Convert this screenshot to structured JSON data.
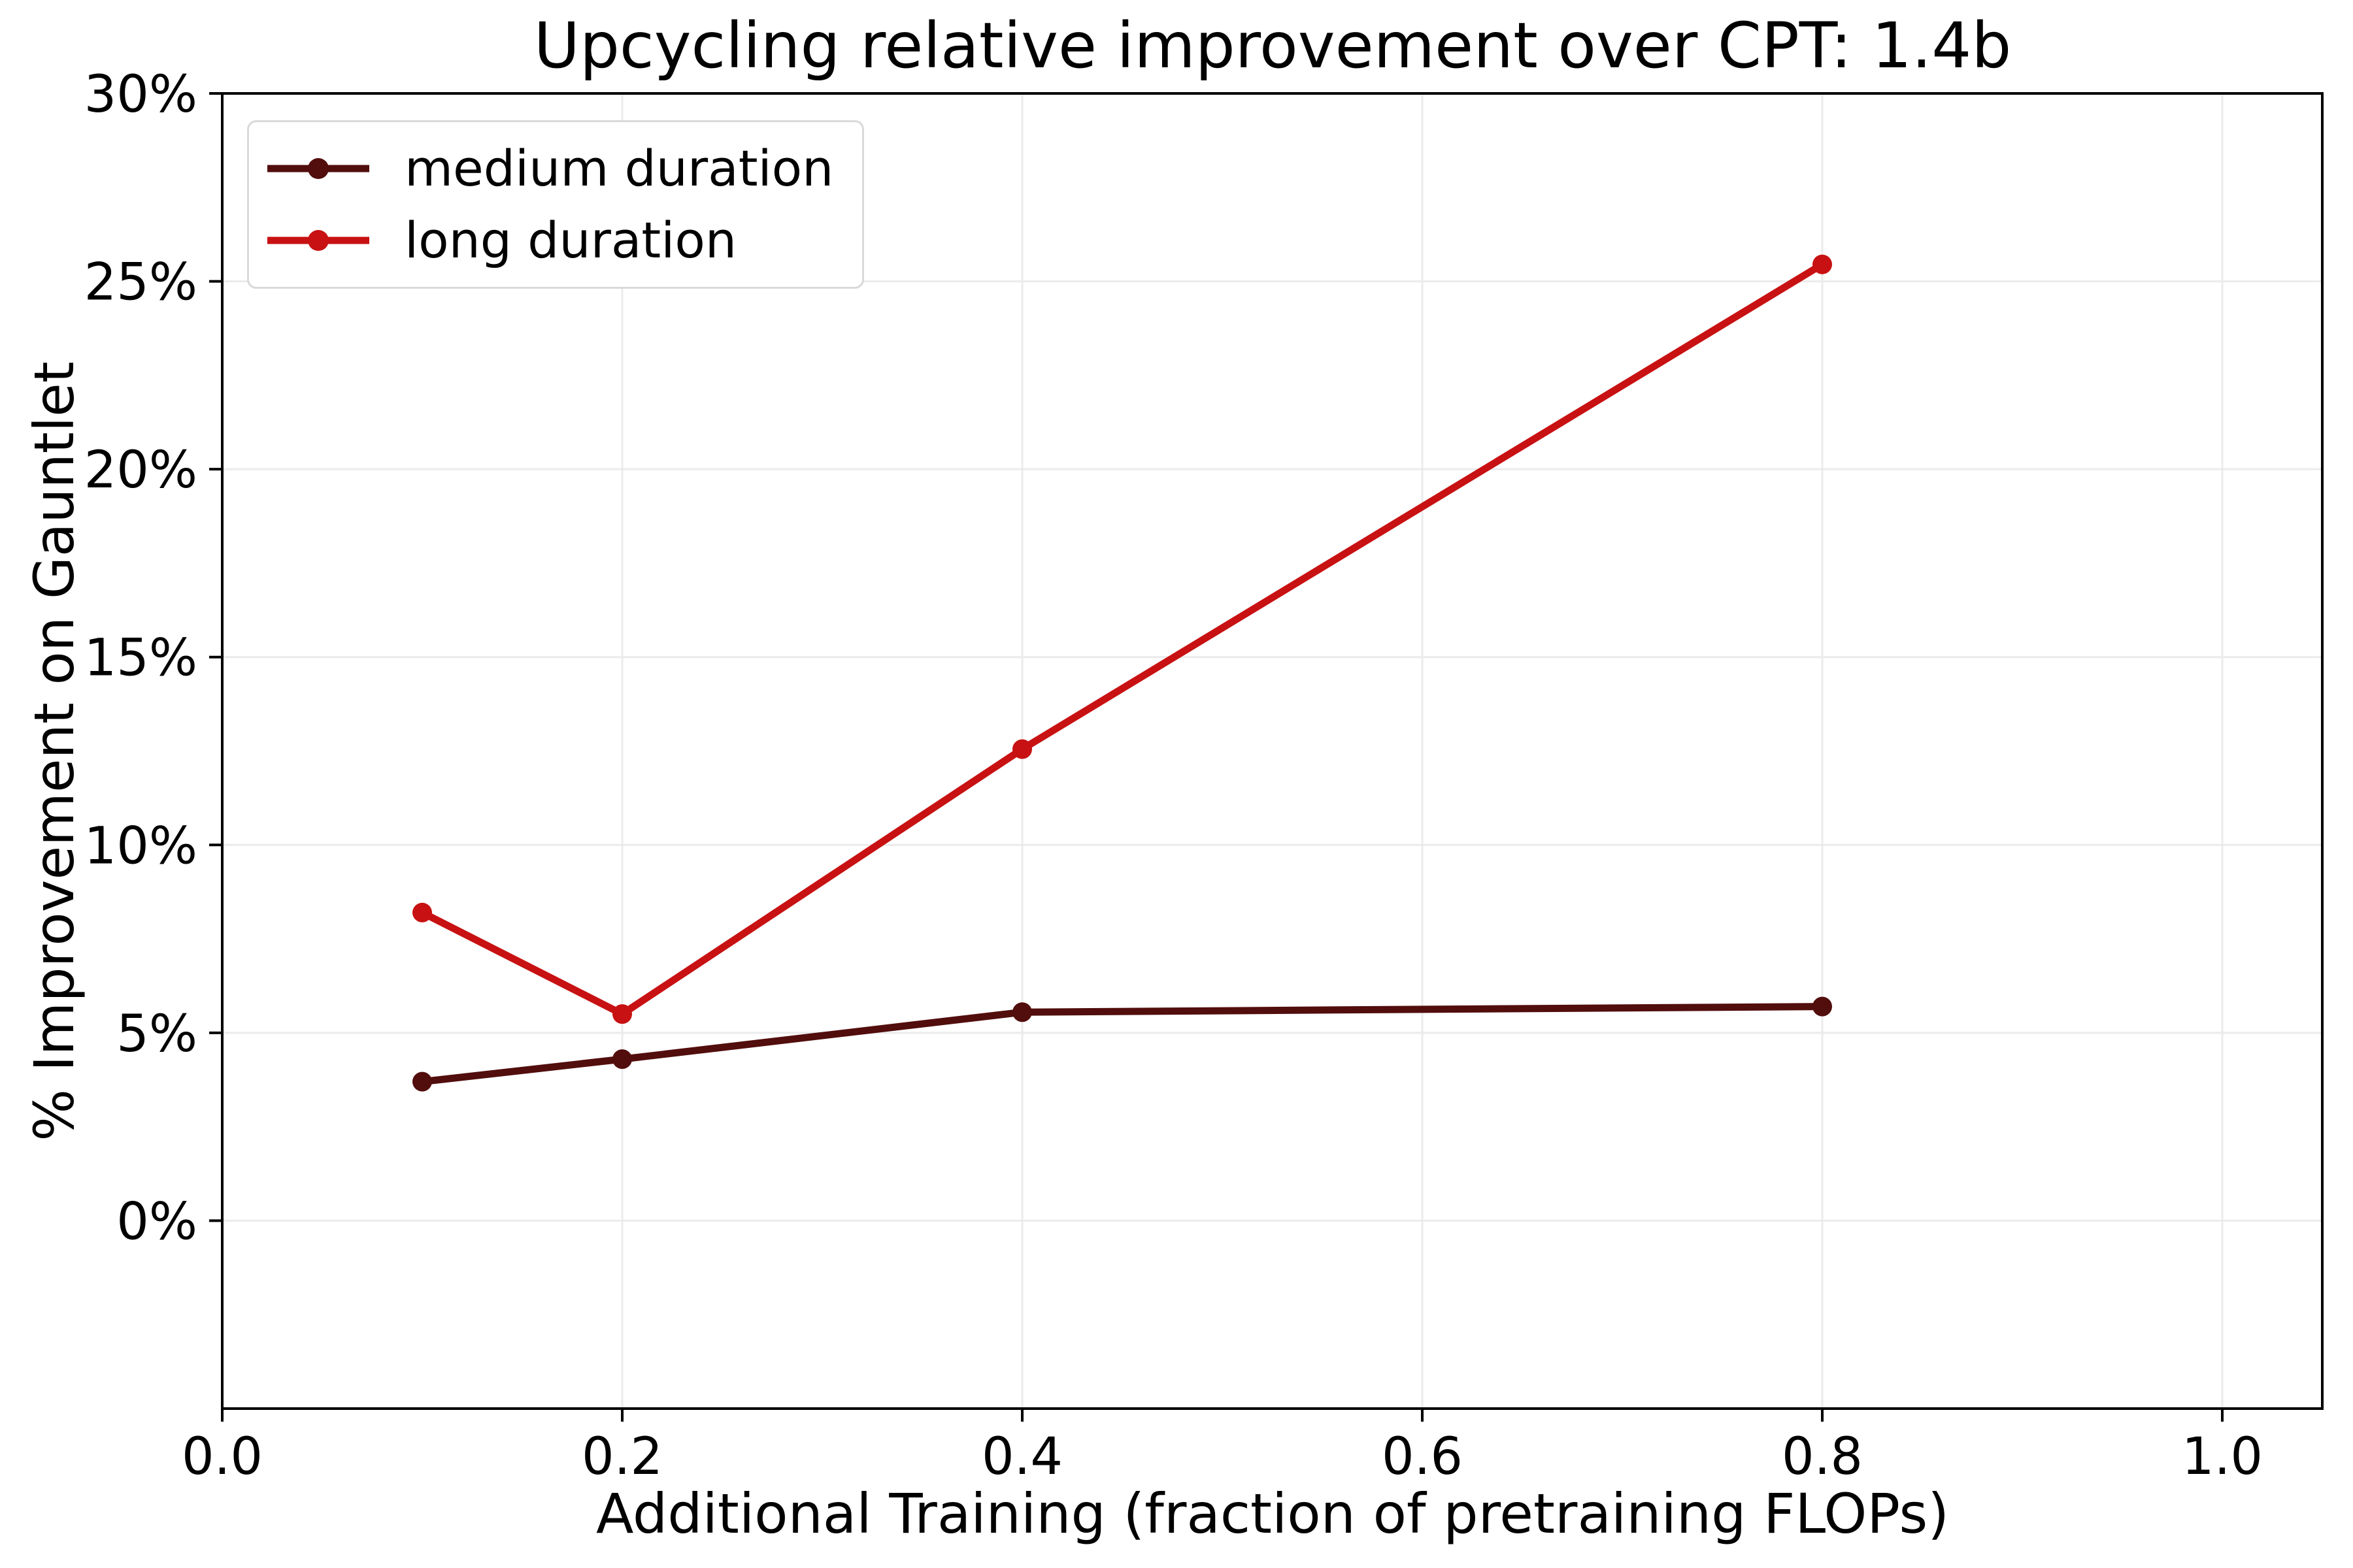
{
  "page": {
    "background": "#ffffff"
  },
  "colors": {
    "grid": "#ebebeb",
    "axis": "#000000",
    "text": "#000000",
    "legend_border": "#d9d9d9",
    "medium_series": "#520d0d",
    "long_series": "#c81112"
  },
  "chart_data": {
    "type": "line",
    "title": "Upcycling relative improvement over CPT: 1.4b",
    "xlabel": "Additional Training (fraction of pretraining FLOPs)",
    "ylabel": "% Improvement on Gauntlet",
    "xlim": [
      0,
      1.05
    ],
    "ylim_pct": [
      -5,
      30
    ],
    "grid": true,
    "legend_position": "upper left",
    "x": [
      0.1,
      0.2,
      0.4,
      0.8
    ],
    "series": [
      {
        "name": "medium duration",
        "color": "#520d0d",
        "values_pct": [
          3.7,
          4.3,
          5.55,
          5.7
        ]
      },
      {
        "name": "long duration",
        "color": "#c81112",
        "values_pct": [
          8.2,
          5.5,
          12.55,
          25.45
        ]
      }
    ],
    "x_ticks": [
      {
        "value": 0.0,
        "label": "0.0"
      },
      {
        "value": 0.2,
        "label": "0.2"
      },
      {
        "value": 0.4,
        "label": "0.4"
      },
      {
        "value": 0.6,
        "label": "0.6"
      },
      {
        "value": 0.8,
        "label": "0.8"
      },
      {
        "value": 1.0,
        "label": "1.0"
      }
    ],
    "y_ticks": [
      {
        "value": 0,
        "label": "0%"
      },
      {
        "value": 5,
        "label": "5%"
      },
      {
        "value": 10,
        "label": "10%"
      },
      {
        "value": 15,
        "label": "15%"
      },
      {
        "value": 20,
        "label": "20%"
      },
      {
        "value": 25,
        "label": "25%"
      },
      {
        "value": 30,
        "label": "30%"
      }
    ]
  }
}
